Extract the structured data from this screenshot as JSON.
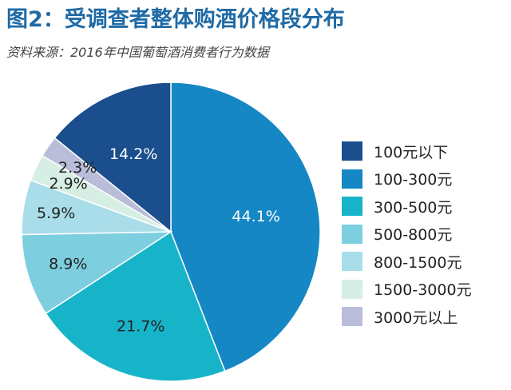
{
  "title": "图2：受调查者整体购酒价格段分布",
  "subtitle": "资料来源：2016年中国葡萄酒消费者行为数据",
  "chart_data": {
    "type": "pie",
    "categories": [
      "100元以下",
      "100-300元",
      "300-500元",
      "500-800元",
      "800-1500元",
      "1500-3000元",
      "3000元以上"
    ],
    "values": [
      14.2,
      44.1,
      21.7,
      8.9,
      5.9,
      2.9,
      2.3
    ],
    "labels": [
      "14.2%",
      "44.1%",
      "21.7%",
      "8.9%",
      "5.9%",
      "2.9%",
      "2.3%"
    ],
    "colors": [
      "#1a4e8c",
      "#1587c4",
      "#17b4c9",
      "#7dcfe0",
      "#a9dde9",
      "#d6eee3",
      "#b9bdd9"
    ],
    "label_colors": [
      "#ffffff",
      "#ffffff",
      "#222222",
      "#222222",
      "#222222",
      "#222222",
      "#222222"
    ],
    "legend_position": "right",
    "start": "12 o'clock, clockwise from 100-300元"
  }
}
